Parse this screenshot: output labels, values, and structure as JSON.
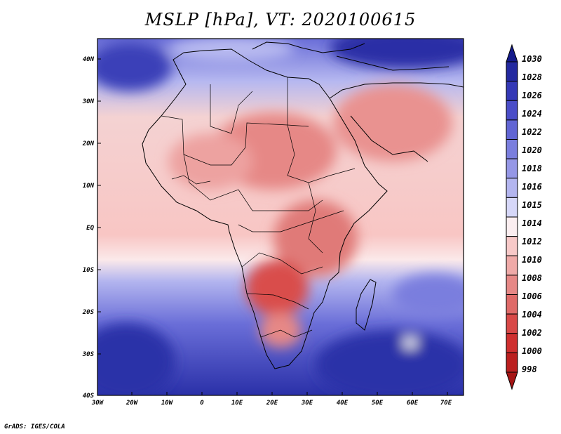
{
  "title": "MSLP [hPa], VT: 2020100615",
  "credit": "GrADS: IGES/COLA",
  "map": {
    "region": "Africa",
    "variable": "Mean sea level pressure",
    "x_ticks": [
      "30W",
      "20W",
      "10W",
      "0",
      "10E",
      "20E",
      "30E",
      "40E",
      "50E",
      "60E",
      "70E"
    ],
    "y_ticks": [
      "40N",
      "30N",
      "20N",
      "10N",
      "EQ",
      "10S",
      "20S",
      "30S",
      "40S"
    ]
  },
  "colorbar": {
    "levels": [
      "1030",
      "1028",
      "1026",
      "1024",
      "1022",
      "1020",
      "1018",
      "1016",
      "1015",
      "1014",
      "1012",
      "1010",
      "1008",
      "1006",
      "1004",
      "1002",
      "1000",
      "998"
    ],
    "colors": [
      "#141a8a",
      "#2329a0",
      "#3438b6",
      "#4a4dc8",
      "#6165d4",
      "#7a7ede",
      "#9597e6",
      "#b3b5ef",
      "#d6d7f8",
      "#fbeef0",
      "#f7c9c8",
      "#efaaa8",
      "#e68886",
      "#df6a68",
      "#d84847",
      "#cf2f2f",
      "#bb1f1f",
      "#a51414"
    ]
  }
}
